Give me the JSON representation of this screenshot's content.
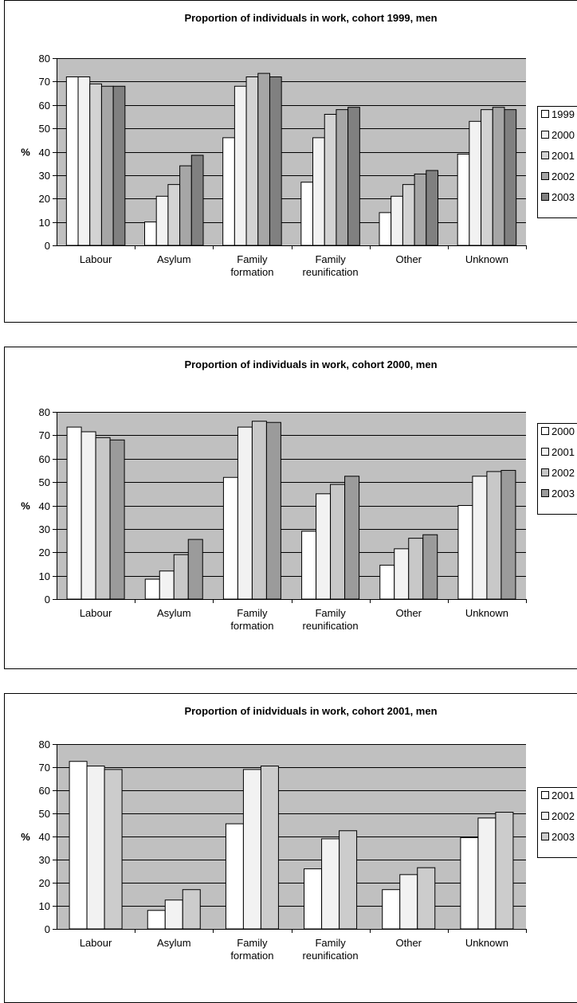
{
  "chart_data": [
    {
      "type": "bar",
      "title": "Proportion of individuals in work, cohort 1999, men",
      "ylabel": "%",
      "xlabel": "",
      "ylim": [
        0,
        80
      ],
      "yticks": [
        "0",
        "10",
        "20",
        "30",
        "40",
        "50",
        "60",
        "70",
        "80"
      ],
      "grid": true,
      "legend_position": "right",
      "categories": [
        [
          "Labour"
        ],
        [
          "Asylum"
        ],
        [
          "Family",
          "formation"
        ],
        [
          "Family",
          "reunification"
        ],
        [
          "Other"
        ],
        [
          "Unknown"
        ]
      ],
      "series": [
        {
          "name": "1999",
          "color": "#ffffff",
          "values": [
            72,
            10,
            46,
            27,
            14,
            39
          ]
        },
        {
          "name": "2000",
          "color": "#f2f2f2",
          "values": [
            72,
            21,
            68,
            46,
            21,
            53
          ]
        },
        {
          "name": "2001",
          "color": "#d3d3d3",
          "values": [
            69,
            26,
            72,
            56,
            26,
            58
          ]
        },
        {
          "name": "2002",
          "color": "#a6a6a6",
          "values": [
            68,
            34,
            73.5,
            58,
            30.5,
            59
          ]
        },
        {
          "name": "2003",
          "color": "#808080",
          "values": [
            68,
            38.5,
            72,
            59,
            32,
            58
          ]
        }
      ]
    },
    {
      "type": "bar",
      "title": "Proportion of individuals in work, cohort 2000, men",
      "ylabel": "%",
      "xlabel": "",
      "ylim": [
        0,
        80
      ],
      "yticks": [
        "0",
        "10",
        "20",
        "30",
        "40",
        "50",
        "60",
        "70",
        "80"
      ],
      "grid": true,
      "legend_position": "right",
      "categories": [
        [
          "Labour"
        ],
        [
          "Asylum"
        ],
        [
          "Family",
          "formation"
        ],
        [
          "Family",
          "reunification"
        ],
        [
          "Other"
        ],
        [
          "Unknown"
        ]
      ],
      "series": [
        {
          "name": "2000",
          "color": "#ffffff",
          "values": [
            73.5,
            8.5,
            52,
            29,
            14.5,
            40
          ]
        },
        {
          "name": "2001",
          "color": "#f2f2f2",
          "values": [
            71.5,
            12,
            73.5,
            45,
            21.5,
            52.5
          ]
        },
        {
          "name": "2002",
          "color": "#c8c8c8",
          "values": [
            69,
            19,
            76,
            49,
            26,
            54.5
          ]
        },
        {
          "name": "2003",
          "color": "#9b9b9b",
          "values": [
            68,
            25.5,
            75.5,
            52.5,
            27.5,
            55
          ]
        }
      ]
    },
    {
      "type": "bar",
      "title": "Proportion of inidviduals in work, cohort 2001, men",
      "ylabel": "%",
      "xlabel": "",
      "ylim": [
        0,
        80
      ],
      "yticks": [
        "0",
        "10",
        "20",
        "30",
        "40",
        "50",
        "60",
        "70",
        "80"
      ],
      "grid": true,
      "legend_position": "right",
      "categories": [
        [
          "Labour"
        ],
        [
          "Asylum"
        ],
        [
          "Family",
          "formation"
        ],
        [
          "Family",
          "reunification"
        ],
        [
          "Other"
        ],
        [
          "Unknown"
        ]
      ],
      "series": [
        {
          "name": "2001",
          "color": "#ffffff",
          "values": [
            72.5,
            8,
            45.5,
            26,
            17,
            39.5
          ]
        },
        {
          "name": "2002",
          "color": "#f2f2f2",
          "values": [
            70.5,
            12.5,
            69,
            39,
            23.5,
            48
          ]
        },
        {
          "name": "2003",
          "color": "#cccccc",
          "values": [
            69,
            17,
            70.5,
            42.5,
            26.5,
            50.5
          ]
        }
      ]
    }
  ]
}
